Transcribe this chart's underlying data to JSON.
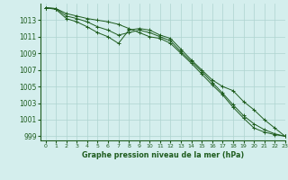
{
  "x": [
    0,
    1,
    2,
    3,
    4,
    5,
    6,
    7,
    8,
    9,
    10,
    11,
    12,
    13,
    14,
    15,
    16,
    17,
    18,
    19,
    20,
    21,
    22,
    23
  ],
  "line1": [
    1014.5,
    1014.4,
    1013.8,
    1013.5,
    1013.2,
    1013.0,
    1012.8,
    1012.5,
    1012.0,
    1011.5,
    1011.0,
    1010.8,
    1010.2,
    1009.0,
    1007.8,
    1006.5,
    1005.2,
    1004.0,
    1002.5,
    1001.2,
    1000.0,
    999.5,
    999.2,
    999.0
  ],
  "line2": [
    1014.5,
    1014.4,
    1013.5,
    1013.2,
    1012.8,
    1012.2,
    1011.8,
    1011.2,
    1011.5,
    1011.8,
    1011.5,
    1011.0,
    1010.5,
    1009.2,
    1008.0,
    1006.8,
    1005.5,
    1004.2,
    1002.8,
    1001.5,
    1000.5,
    999.8,
    999.3,
    999.0
  ],
  "line3": [
    1014.5,
    1014.3,
    1013.2,
    1012.8,
    1012.2,
    1011.5,
    1011.0,
    1010.2,
    1011.8,
    1012.0,
    1011.8,
    1011.2,
    1010.8,
    1009.5,
    1008.2,
    1007.0,
    1005.8,
    1005.0,
    1004.5,
    1003.2,
    1002.2,
    1001.0,
    1000.0,
    999.0
  ],
  "bg_color": "#d4eeed",
  "line_color": "#1e5c1e",
  "grid_color": "#aed4d0",
  "tick_color": "#1e5c1e",
  "label_color": "#1e5c1e",
  "xlabel": "Graphe pression niveau de la mer (hPa)",
  "ylim": [
    998.5,
    1015.0
  ],
  "xlim": [
    -0.5,
    23
  ],
  "yticks": [
    999,
    1001,
    1003,
    1005,
    1007,
    1009,
    1011,
    1013
  ],
  "xticks": [
    0,
    1,
    2,
    3,
    4,
    5,
    6,
    7,
    8,
    9,
    10,
    11,
    12,
    13,
    14,
    15,
    16,
    17,
    18,
    19,
    20,
    21,
    22,
    23
  ]
}
